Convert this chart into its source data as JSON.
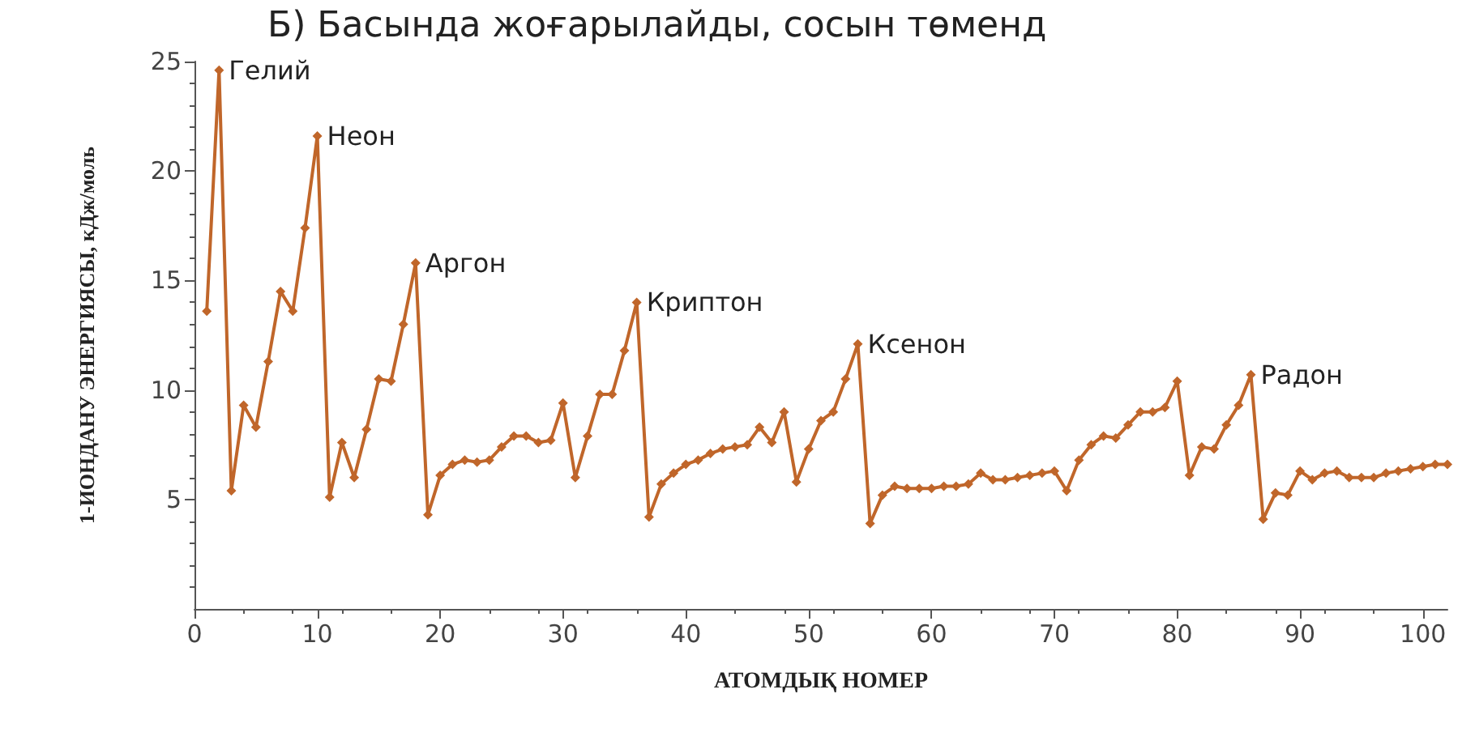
{
  "chart_data": {
    "type": "line",
    "title": "Б) Басында жоғарылайды, сосын төменд",
    "xlabel": "АТОМДЫҚ НОМЕР",
    "ylabel": "1-ИОНДАНУ ЭНЕРГИЯСЫ, кДж/моль",
    "x": [
      1,
      2,
      3,
      4,
      5,
      6,
      7,
      8,
      9,
      10,
      11,
      12,
      13,
      14,
      15,
      16,
      17,
      18,
      19,
      20,
      21,
      22,
      23,
      24,
      25,
      26,
      27,
      28,
      29,
      30,
      31,
      32,
      33,
      34,
      35,
      36,
      37,
      38,
      39,
      40,
      41,
      42,
      43,
      44,
      45,
      46,
      47,
      48,
      49,
      50,
      51,
      52,
      53,
      54,
      55,
      56,
      57,
      58,
      59,
      60,
      61,
      62,
      63,
      64,
      65,
      66,
      67,
      68,
      69,
      70,
      71,
      72,
      73,
      74,
      75,
      76,
      77,
      78,
      79,
      80,
      81,
      82,
      83,
      84,
      85,
      86,
      87,
      88,
      89,
      90,
      91,
      92,
      93,
      94,
      95,
      96,
      97,
      98,
      99,
      100,
      101,
      102
    ],
    "series": [
      {
        "color": "#c0662a",
        "values": [
          13.6,
          24.6,
          5.4,
          9.3,
          8.3,
          11.3,
          14.5,
          13.6,
          17.4,
          21.6,
          5.1,
          7.6,
          6.0,
          8.2,
          10.5,
          10.4,
          13.0,
          15.8,
          4.3,
          6.1,
          6.6,
          6.8,
          6.7,
          6.8,
          7.4,
          7.9,
          7.9,
          7.6,
          7.7,
          9.4,
          6.0,
          7.9,
          9.8,
          9.8,
          11.8,
          14.0,
          4.2,
          5.7,
          6.2,
          6.6,
          6.8,
          7.1,
          7.3,
          7.4,
          7.5,
          8.3,
          7.6,
          9.0,
          5.8,
          7.3,
          8.6,
          9.0,
          10.5,
          12.1,
          3.9,
          5.2,
          5.6,
          5.5,
          5.5,
          5.5,
          5.6,
          5.6,
          5.7,
          6.2,
          5.9,
          5.9,
          6.0,
          6.1,
          6.2,
          6.3,
          5.4,
          6.8,
          7.5,
          7.9,
          7.8,
          8.4,
          9.0,
          9.0,
          9.2,
          10.4,
          6.1,
          7.4,
          7.3,
          8.4,
          9.3,
          10.7,
          4.1,
          5.3,
          5.2,
          6.3,
          5.9,
          6.2,
          6.3,
          6.0,
          6.0,
          6.0,
          6.2,
          6.3,
          6.4,
          6.5,
          6.6,
          6.6
        ]
      }
    ],
    "xlim": [
      0,
      102
    ],
    "xticks": [
      0,
      10,
      20,
      30,
      40,
      50,
      60,
      70,
      80,
      90,
      100
    ],
    "ylim": [
      0,
      25
    ],
    "yticks": [
      5,
      10,
      15,
      20,
      25
    ],
    "grid": false,
    "marker": "diamond",
    "line_style": "solid",
    "annotations": [
      {
        "text": "Гелий",
        "x": 2,
        "y": 24.6
      },
      {
        "text": "Неон",
        "x": 10,
        "y": 21.6
      },
      {
        "text": "Аргон",
        "x": 18,
        "y": 15.8
      },
      {
        "text": "Криптон",
        "x": 36,
        "y": 14.0
      },
      {
        "text": "Ксенон",
        "x": 54,
        "y": 12.1
      },
      {
        "text": "Радон",
        "x": 86,
        "y": 10.7
      }
    ]
  }
}
